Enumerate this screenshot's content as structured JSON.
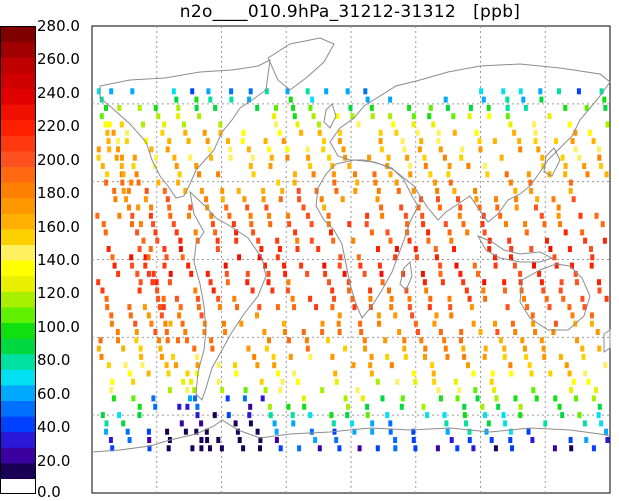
{
  "title": "n2o____010.9hPa_31212-31312   [ppb]",
  "colorbar": {
    "min": 0.0,
    "max": 280.0,
    "tick_labels": [
      "280.0",
      "260.0",
      "240.0",
      "220.0",
      "200.0",
      "180.0",
      "160.0",
      "140.0",
      "120.0",
      "100.0",
      "80.0",
      "60.0",
      "40.0",
      "20.0",
      "0.0"
    ],
    "colors": [
      "#ffffff",
      "#1a0055",
      "#3a00a0",
      "#2a18d8",
      "#0040ff",
      "#0070ff",
      "#00a8ff",
      "#00e0f0",
      "#00e0a0",
      "#00d840",
      "#10e010",
      "#60f000",
      "#a8f000",
      "#e8f000",
      "#ffff00",
      "#fff060",
      "#ffd000",
      "#ffb000",
      "#ff9800",
      "#ff8000",
      "#ff6a10",
      "#ff5020",
      "#ff3810",
      "#ff2000",
      "#f01000",
      "#e00000",
      "#d00000",
      "#c00000",
      "#a00000",
      "#800000"
    ]
  },
  "map": {
    "projection": "equirectangular",
    "gridlines": "dashed",
    "lon_range": [
      -180,
      180
    ],
    "lat_range": [
      -90,
      90
    ]
  }
}
